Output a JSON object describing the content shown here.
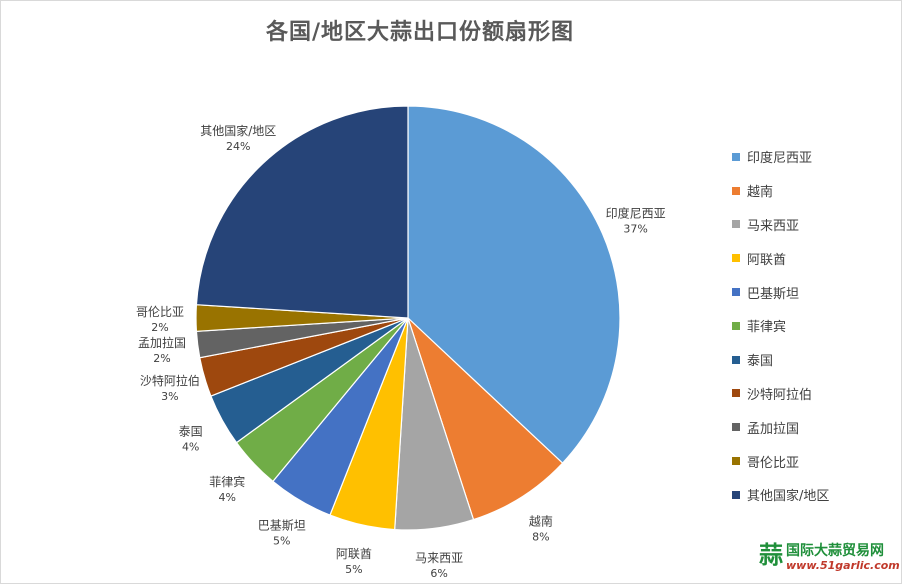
{
  "chart_data": {
    "type": "pie",
    "title": "各国/地区大蒜出口份额扇形图",
    "categories": [
      "印度尼西亚",
      "越南",
      "马来西亚",
      "阿联酋",
      "巴基斯坦",
      "菲律宾",
      "泰国",
      "沙特阿拉伯",
      "孟加拉国",
      "哥伦比亚",
      "其他国家/地区"
    ],
    "values": [
      37,
      8,
      6,
      5,
      5,
      4,
      4,
      3,
      2,
      2,
      24
    ],
    "value_labels": [
      "37%",
      "8%",
      "6%",
      "5%",
      "5%",
      "4%",
      "4%",
      "3%",
      "2%",
      "2%",
      "24%"
    ],
    "colors": [
      "#5b9bd5",
      "#ed7d31",
      "#a5a5a5",
      "#ffc000",
      "#4472c4",
      "#70ad47",
      "#255e91",
      "#9e480e",
      "#636363",
      "#997300",
      "#264478"
    ],
    "legend_position": "right"
  },
  "watermark": {
    "logo": "蒜",
    "name": "国际大蒜贸易网",
    "url": "www.51garlic.com"
  }
}
